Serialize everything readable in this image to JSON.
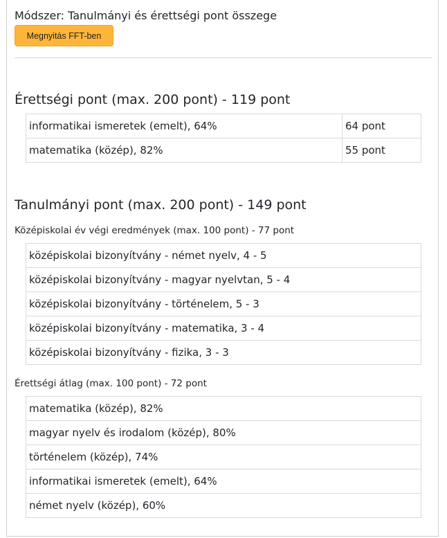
{
  "method": "Módszer: Tanulmányi és érettségi pont összege",
  "open_button": "Megnyitás FFT-ben",
  "erettsegi": {
    "heading": "Érettségi pont (max. 200 pont) - 119 pont",
    "rows": [
      {
        "subject": "informatikai ismeretek (emelt), 64%",
        "points": "64 pont"
      },
      {
        "subject": "matematika (közép), 82%",
        "points": "55 pont"
      }
    ]
  },
  "tanulmanyi": {
    "heading": "Tanulmányi pont (max. 200 pont) - 149 pont",
    "kozepiskolai": {
      "heading": "Középiskolai év végi eredmények (max. 100 pont) - 77 pont",
      "rows": [
        "középiskolai bizonyítvány - német nyelv, 4 - 5",
        "középiskolai bizonyítvány - magyar nyelvtan, 5 - 4",
        "középiskolai bizonyítvány - történelem, 5 - 3",
        "középiskolai bizonyítvány - matematika, 3 - 4",
        "középiskolai bizonyítvány - fizika, 3 - 3"
      ]
    },
    "erettsegi_atlag": {
      "heading": "Érettségi átlag (max. 100 pont) - 72 pont",
      "rows": [
        "matematika (közép), 82%",
        "magyar nyelv és irodalom (közép), 80%",
        "történelem (közép), 74%",
        "informatikai ismeretek (emelt), 64%",
        "német nyelv (közép), 60%"
      ]
    }
  }
}
